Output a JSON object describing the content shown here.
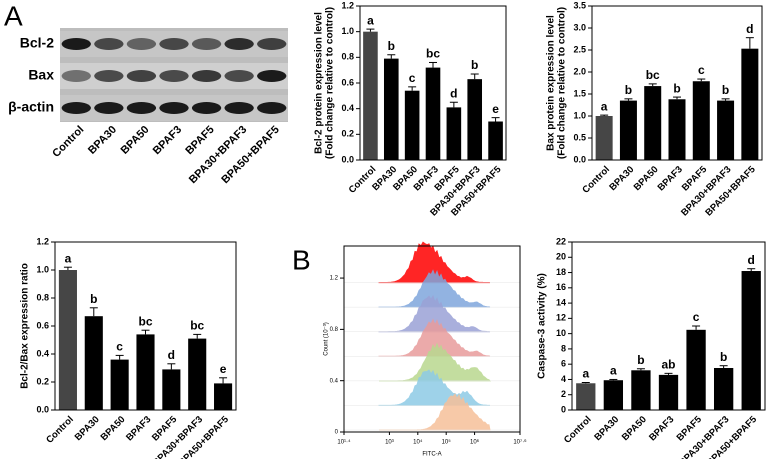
{
  "panel_labels": {
    "a": "A",
    "b": "B"
  },
  "blot": {
    "rows": [
      "Bcl-2",
      "Bax",
      "β-actin"
    ],
    "lanes": [
      "Control",
      "BPA30",
      "BPA50",
      "BPAF3",
      "BPAF5",
      "BPA30+BPAF3",
      "BPA50+BPAF5"
    ]
  },
  "chart_data": [
    {
      "type": "bar",
      "ylabel": [
        "Bcl-2 protein expression level",
        "(Fold change relative to control)"
      ],
      "categories": [
        "Control",
        "BPA30",
        "BPA50",
        "BPAF3",
        "BPAF5",
        "BPA30+BPAF3",
        "BPA50+BPAF5"
      ],
      "values": [
        1.0,
        0.79,
        0.54,
        0.72,
        0.41,
        0.63,
        0.3
      ],
      "errors": [
        0.02,
        0.03,
        0.03,
        0.04,
        0.04,
        0.04,
        0.03
      ],
      "letters": [
        "a",
        "b",
        "c",
        "bc",
        "d",
        "b",
        "e"
      ],
      "colors": [
        "#464646",
        "#000000",
        "#000000",
        "#000000",
        "#000000",
        "#000000",
        "#000000"
      ],
      "ylim": [
        0,
        1.2
      ],
      "yticks": [
        {
          "value": 0,
          "label": "0.0"
        },
        0.2,
        0.4,
        0.6,
        0.8,
        {
          "value": 1,
          "label": "1.0"
        },
        1.2
      ]
    },
    {
      "type": "bar",
      "ylabel": [
        "Bax protein expression level",
        "(Fold change relative to control)"
      ],
      "categories": [
        "Control",
        "BPA30",
        "BPA50",
        "BPAF3",
        "BPAF5",
        "BPA30+BPAF3",
        "BPA50+BPAF5"
      ],
      "values": [
        1.0,
        1.35,
        1.68,
        1.38,
        1.79,
        1.35,
        2.53
      ],
      "errors": [
        0.02,
        0.04,
        0.05,
        0.05,
        0.05,
        0.04,
        0.25
      ],
      "letters": [
        "a",
        "b",
        "bc",
        "b",
        "c",
        "b",
        "d"
      ],
      "colors": [
        "#464646",
        "#000000",
        "#000000",
        "#000000",
        "#000000",
        "#000000",
        "#000000"
      ],
      "ylim": [
        0,
        3.5
      ],
      "yticks": [
        {
          "value": 0,
          "label": "0.0"
        },
        0.5,
        {
          "value": 1,
          "label": "1.0"
        },
        1.5,
        {
          "value": 2,
          "label": "2.0"
        },
        2.5,
        {
          "value": 3,
          "label": "3.0"
        },
        3.5
      ]
    },
    {
      "type": "bar",
      "ylabel": [
        "Bcl-2/Bax expression ratio"
      ],
      "categories": [
        "Control",
        "BPA30",
        "BPA50",
        "BPAF3",
        "BPAF5",
        "BPA30+BPAF3",
        "BPA50+BPAF5"
      ],
      "values": [
        1.0,
        0.67,
        0.36,
        0.54,
        0.29,
        0.51,
        0.19
      ],
      "errors": [
        0.02,
        0.06,
        0.03,
        0.03,
        0.04,
        0.03,
        0.04
      ],
      "letters": [
        "a",
        "b",
        "c",
        "bc",
        "d",
        "bc",
        "e"
      ],
      "colors": [
        "#464646",
        "#000000",
        "#000000",
        "#000000",
        "#000000",
        "#000000",
        "#000000"
      ],
      "ylim": [
        0,
        1.2
      ],
      "yticks": [
        {
          "value": 0,
          "label": "0.0"
        },
        0.2,
        0.4,
        0.6,
        0.8,
        {
          "value": 1,
          "label": "1.0"
        },
        1.2
      ]
    },
    {
      "type": "bar",
      "ylabel": [
        "Caspase-3 activity (%)"
      ],
      "categories": [
        "Control",
        "BPA30",
        "BPA50",
        "BPAF3",
        "BPAF5",
        "BPA30+BPAF3",
        "BPA50+BPAF5"
      ],
      "values": [
        3.5,
        3.9,
        5.2,
        4.6,
        10.5,
        5.5,
        18.2
      ],
      "errors": [
        0.1,
        0.1,
        0.2,
        0.2,
        0.5,
        0.3,
        0.3
      ],
      "letters": [
        "a",
        "a",
        "b",
        "ab",
        "c",
        "b",
        "d"
      ],
      "colors": [
        "#464646",
        "#000000",
        "#000000",
        "#000000",
        "#000000",
        "#000000",
        "#000000"
      ],
      "ylim": [
        0,
        22
      ],
      "yticks": [
        0,
        2,
        4,
        6,
        8,
        10,
        12,
        14,
        16,
        18,
        20,
        22
      ]
    },
    {
      "type": "overlay",
      "ylabel": [
        "Count (10⁻³)"
      ],
      "xlabel": "FITC-A",
      "ylim": [
        0,
        1.45
      ],
      "yticks": [
        0,
        0.4,
        0.8,
        1.2
      ],
      "xlim": [
        1.4,
        7.6
      ],
      "xticks": [
        {
          "value": 1.4,
          "label": "10¹·⁴"
        },
        {
          "value": 3,
          "label": "10³"
        },
        {
          "value": 4,
          "label": "10⁴"
        },
        {
          "value": 5,
          "label": "10⁵"
        },
        {
          "value": 6,
          "label": "10⁶"
        },
        {
          "value": 7.6,
          "label": "10⁷·⁶"
        }
      ],
      "colors": [
        "#ff0000",
        "#7fa6dc",
        "#9ba2d6",
        "#e89c9c",
        "#b9d88f",
        "#8ecbe6",
        "#f6c09a"
      ]
    }
  ]
}
